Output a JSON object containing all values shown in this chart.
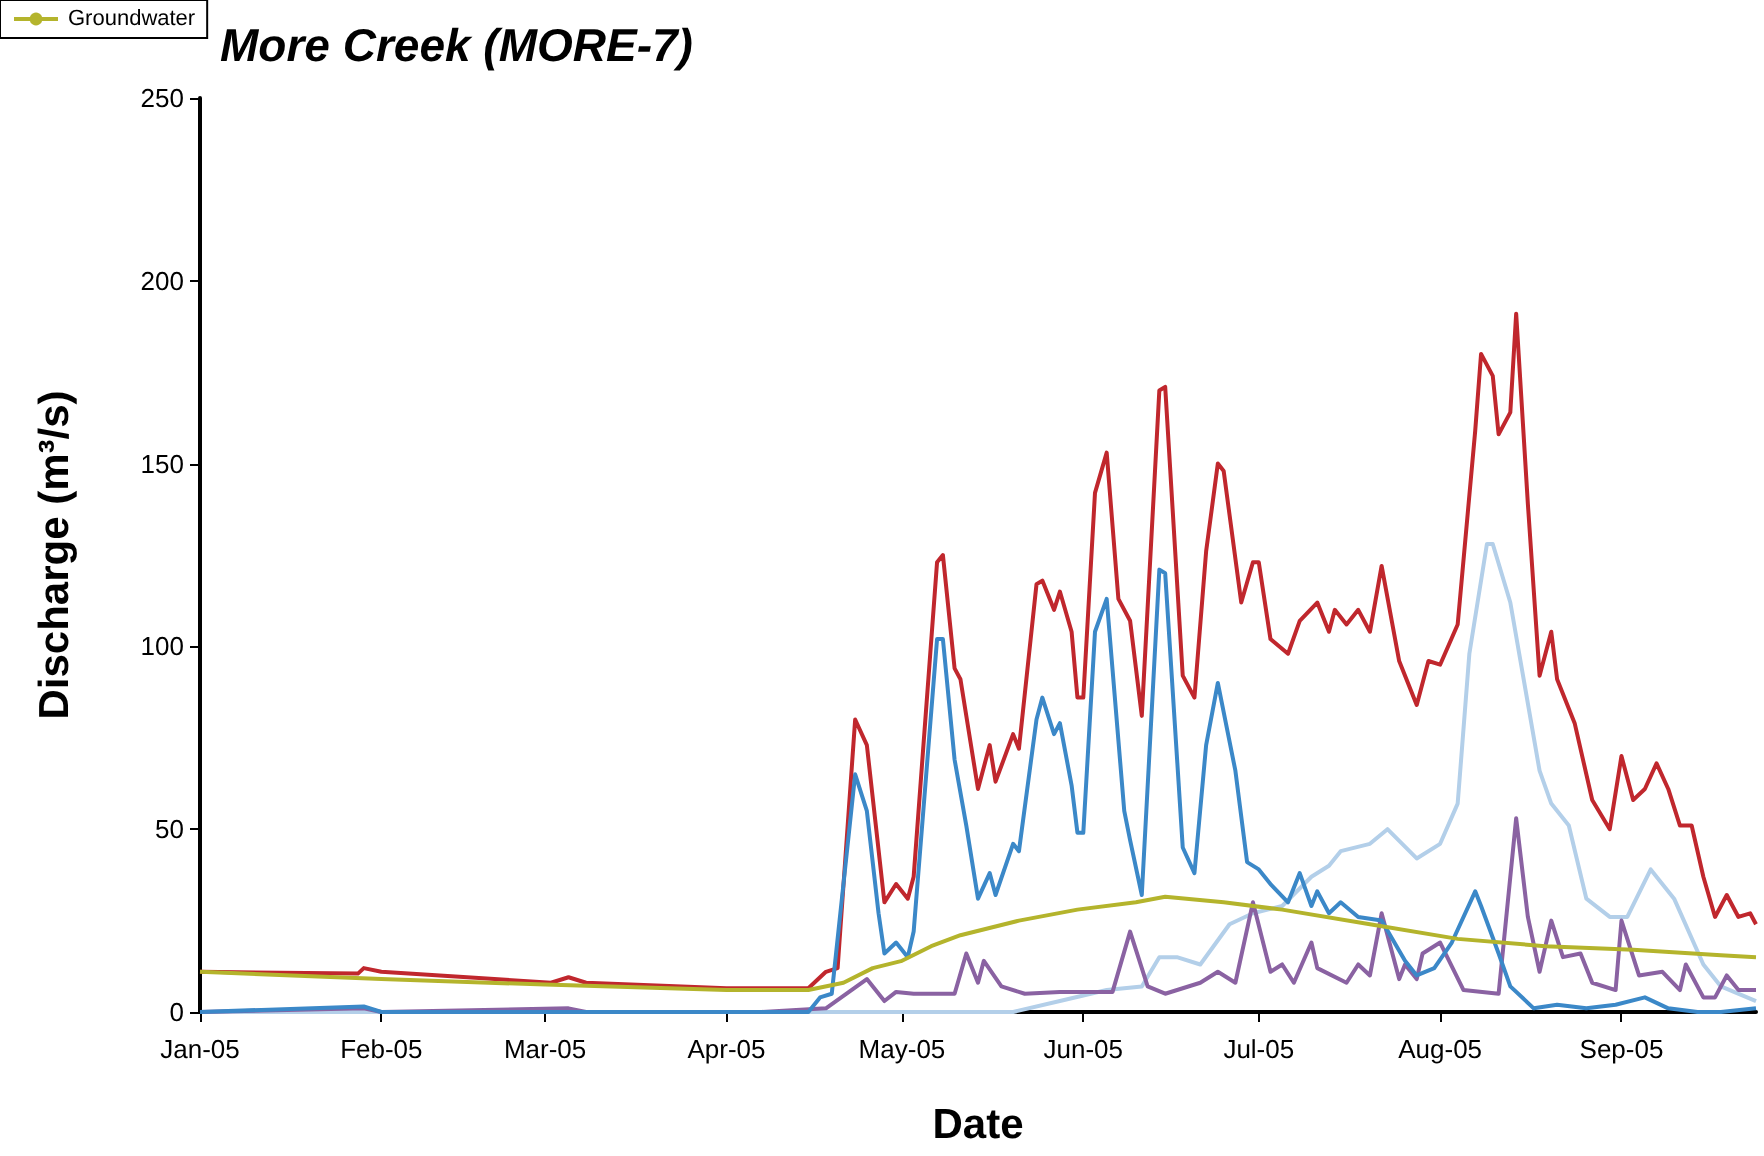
{
  "chart_data": {
    "type": "line",
    "title": "More Creek (MORE-7)",
    "xlabel": "Date",
    "ylabel": "Discharge (m³/s)",
    "xlim": [
      "2005-01-01",
      "2005-09-24"
    ],
    "xticks": [
      {
        "value": "2005-01-01",
        "label": "Jan-05"
      },
      {
        "value": "2005-02-01",
        "label": "Feb-05"
      },
      {
        "value": "2005-03-01",
        "label": "Mar-05"
      },
      {
        "value": "2005-04-01",
        "label": "Apr-05"
      },
      {
        "value": "2005-05-01",
        "label": "May-05"
      },
      {
        "value": "2005-06-01",
        "label": "Jun-05"
      },
      {
        "value": "2005-07-01",
        "label": "Jul-05"
      },
      {
        "value": "2005-08-01",
        "label": "Aug-05"
      },
      {
        "value": "2005-09-01",
        "label": "Sep-05"
      }
    ],
    "ylim": [
      0,
      250
    ],
    "yticks": [
      0,
      50,
      100,
      150,
      200,
      250
    ],
    "grid": false,
    "legend": "top left",
    "series": [
      {
        "color": "#c0272d",
        "x": [
          "2005-01-01",
          "2005-01-28",
          "2005-01-29",
          "2005-02-01",
          "2005-03-02",
          "2005-03-05",
          "2005-03-08",
          "2005-04-01",
          "2005-04-15",
          "2005-04-18",
          "2005-04-20",
          "2005-04-23",
          "2005-04-25",
          "2005-04-28",
          "2005-04-30",
          "2005-05-02",
          "2005-05-03",
          "2005-05-07",
          "2005-05-08",
          "2005-05-10",
          "2005-05-11",
          "2005-05-14",
          "2005-05-16",
          "2005-05-17",
          "2005-05-20",
          "2005-05-21",
          "2005-05-24",
          "2005-05-25",
          "2005-05-27",
          "2005-05-28",
          "2005-05-30",
          "2005-05-31",
          "2005-06-01",
          "2005-06-03",
          "2005-06-05",
          "2005-06-07",
          "2005-06-09",
          "2005-06-11",
          "2005-06-14",
          "2005-06-15",
          "2005-06-18",
          "2005-06-20",
          "2005-06-22",
          "2005-06-24",
          "2005-06-25",
          "2005-06-28",
          "2005-06-30",
          "2005-07-01",
          "2005-07-03",
          "2005-07-06",
          "2005-07-08",
          "2005-07-11",
          "2005-07-13",
          "2005-07-14",
          "2005-07-16",
          "2005-07-18",
          "2005-07-20",
          "2005-07-22",
          "2005-07-25",
          "2005-07-28",
          "2005-07-30",
          "2005-08-01",
          "2005-08-04",
          "2005-08-07",
          "2005-08-08",
          "2005-08-10",
          "2005-08-11",
          "2005-08-13",
          "2005-08-14",
          "2005-08-16",
          "2005-08-18",
          "2005-08-20",
          "2005-08-21",
          "2005-08-24",
          "2005-08-27",
          "2005-08-30",
          "2005-09-01",
          "2005-09-03",
          "2005-09-05",
          "2005-09-07",
          "2005-09-09",
          "2005-09-11",
          "2005-09-13",
          "2005-09-15",
          "2005-09-17",
          "2005-09-19",
          "2005-09-21",
          "2005-09-23",
          "2005-09-24"
        ],
        "values": [
          11,
          10.5,
          12,
          11,
          8,
          9.5,
          8,
          6.5,
          6.5,
          11,
          12,
          80,
          73,
          30,
          35,
          31,
          37,
          123,
          125,
          94,
          91,
          61,
          73,
          63,
          76,
          72,
          117,
          118,
          110,
          115,
          104,
          86,
          86,
          142,
          153,
          113,
          107,
          81,
          170,
          171,
          92,
          86,
          126,
          150,
          148,
          112,
          123,
          123,
          102,
          98,
          107,
          112,
          104,
          110,
          106,
          110,
          104,
          122,
          96,
          84,
          96,
          95,
          106,
          159,
          180,
          174,
          158,
          164,
          191,
          139,
          92,
          104,
          91,
          79,
          58,
          50,
          70,
          58,
          61,
          68,
          61,
          51,
          51,
          37,
          26,
          32,
          26,
          27,
          24
        ]
      },
      {
        "color": "#b3cfe9",
        "x": [
          "2005-01-01",
          "2005-05-20",
          "2005-05-28",
          "2005-06-05",
          "2005-06-11",
          "2005-06-14",
          "2005-06-17",
          "2005-06-21",
          "2005-06-26",
          "2005-06-30",
          "2005-07-05",
          "2005-07-10",
          "2005-07-13",
          "2005-07-15",
          "2005-07-20",
          "2005-07-23",
          "2005-07-28",
          "2005-08-01",
          "2005-08-04",
          "2005-08-06",
          "2005-08-09",
          "2005-08-10",
          "2005-08-13",
          "2005-08-18",
          "2005-08-20",
          "2005-08-23",
          "2005-08-26",
          "2005-08-30",
          "2005-09-02",
          "2005-09-06",
          "2005-09-10",
          "2005-09-15",
          "2005-09-18",
          "2005-09-24"
        ],
        "values": [
          0,
          0,
          3,
          6,
          7,
          15,
          15,
          13,
          24,
          27,
          29,
          37,
          40,
          44,
          46,
          50,
          42,
          46,
          57,
          98,
          128,
          128,
          112,
          66,
          57,
          51,
          31,
          26,
          26,
          39,
          31,
          13,
          7,
          3
        ]
      },
      {
        "color": "#8a62a2",
        "x": [
          "2005-01-01",
          "2005-01-29",
          "2005-02-01",
          "2005-03-05",
          "2005-03-08",
          "2005-04-07",
          "2005-04-18",
          "2005-04-25",
          "2005-04-28",
          "2005-04-30",
          "2005-05-03",
          "2005-05-10",
          "2005-05-12",
          "2005-05-14",
          "2005-05-15",
          "2005-05-18",
          "2005-05-22",
          "2005-05-28",
          "2005-06-06",
          "2005-06-09",
          "2005-06-12",
          "2005-06-15",
          "2005-06-21",
          "2005-06-24",
          "2005-06-27",
          "2005-06-30",
          "2005-07-03",
          "2005-07-05",
          "2005-07-07",
          "2005-07-10",
          "2005-07-11",
          "2005-07-16",
          "2005-07-18",
          "2005-07-20",
          "2005-07-22",
          "2005-07-25",
          "2005-07-26",
          "2005-07-28",
          "2005-07-29",
          "2005-08-01",
          "2005-08-05",
          "2005-08-11",
          "2005-08-14",
          "2005-08-16",
          "2005-08-18",
          "2005-08-20",
          "2005-08-22",
          "2005-08-25",
          "2005-08-27",
          "2005-08-31",
          "2005-09-01",
          "2005-09-04",
          "2005-09-08",
          "2005-09-11",
          "2005-09-12",
          "2005-09-15",
          "2005-09-17",
          "2005-09-19",
          "2005-09-21",
          "2005-09-24"
        ],
        "values": [
          0,
          1,
          0,
          1,
          0,
          0,
          1,
          9,
          3,
          5.5,
          5,
          5,
          16,
          8,
          14,
          7,
          5,
          5.5,
          5.5,
          22,
          7,
          5,
          8,
          11,
          8,
          30,
          11,
          13,
          8,
          19,
          12,
          8,
          13,
          10,
          27,
          9,
          13,
          9,
          16,
          19,
          6,
          5,
          53,
          26,
          11,
          25,
          15,
          16,
          8,
          6,
          25,
          10,
          11,
          6,
          13,
          4,
          4,
          10,
          6,
          6
        ]
      },
      {
        "color": "#3b88c8",
        "x": [
          "2005-01-01",
          "2005-01-29",
          "2005-02-01",
          "2005-04-15",
          "2005-04-17",
          "2005-04-19",
          "2005-04-23",
          "2005-04-25",
          "2005-04-27",
          "2005-04-28",
          "2005-04-30",
          "2005-05-02",
          "2005-05-03",
          "2005-05-07",
          "2005-05-08",
          "2005-05-10",
          "2005-05-12",
          "2005-05-14",
          "2005-05-16",
          "2005-05-17",
          "2005-05-20",
          "2005-05-21",
          "2005-05-24",
          "2005-05-25",
          "2005-05-27",
          "2005-05-28",
          "2005-05-30",
          "2005-05-31",
          "2005-06-01",
          "2005-06-03",
          "2005-06-05",
          "2005-06-08",
          "2005-06-09",
          "2005-06-11",
          "2005-06-14",
          "2005-06-15",
          "2005-06-18",
          "2005-06-20",
          "2005-06-22",
          "2005-06-24",
          "2005-06-27",
          "2005-06-29",
          "2005-07-01",
          "2005-07-03",
          "2005-07-06",
          "2005-07-08",
          "2005-07-10",
          "2005-07-11",
          "2005-07-13",
          "2005-07-15",
          "2005-07-18",
          "2005-07-22",
          "2005-07-26",
          "2005-07-28",
          "2005-07-31",
          "2005-08-03",
          "2005-08-07",
          "2005-08-08",
          "2005-08-11",
          "2005-08-13",
          "2005-08-17",
          "2005-08-21",
          "2005-08-26",
          "2005-08-31",
          "2005-09-05",
          "2005-09-09",
          "2005-09-14",
          "2005-09-18",
          "2005-09-24"
        ],
        "values": [
          0,
          1.5,
          0,
          0,
          4,
          5,
          65,
          55,
          27,
          16,
          19,
          15,
          22,
          102,
          102,
          69,
          51,
          31,
          38,
          32,
          46,
          44,
          80,
          86,
          76,
          79,
          62,
          49,
          49,
          104,
          113,
          55,
          47,
          32,
          121,
          120,
          45,
          38,
          73,
          90,
          66,
          41,
          39,
          35,
          30,
          38,
          29,
          33,
          27,
          30,
          26,
          25,
          14,
          10,
          12,
          19,
          33,
          29,
          16,
          7,
          1,
          2,
          1,
          2,
          4,
          1,
          0,
          0,
          1
        ]
      },
      {
        "name": "Groundwater",
        "color": "#b4b42c",
        "x": [
          "2005-01-01",
          "2005-02-01",
          "2005-03-01",
          "2005-04-01",
          "2005-04-15",
          "2005-04-21",
          "2005-04-26",
          "2005-05-01",
          "2005-05-06",
          "2005-05-11",
          "2005-05-21",
          "2005-05-31",
          "2005-06-10",
          "2005-06-15",
          "2005-06-25",
          "2005-07-05",
          "2005-07-20",
          "2005-08-04",
          "2005-08-19",
          "2005-09-03",
          "2005-09-18",
          "2005-09-24"
        ],
        "values": [
          11,
          9,
          7.5,
          6,
          6,
          8,
          12,
          14,
          18,
          21,
          25,
          28,
          30,
          31.5,
          30,
          28,
          24,
          20,
          18,
          17,
          15.5,
          15
        ]
      }
    ]
  }
}
